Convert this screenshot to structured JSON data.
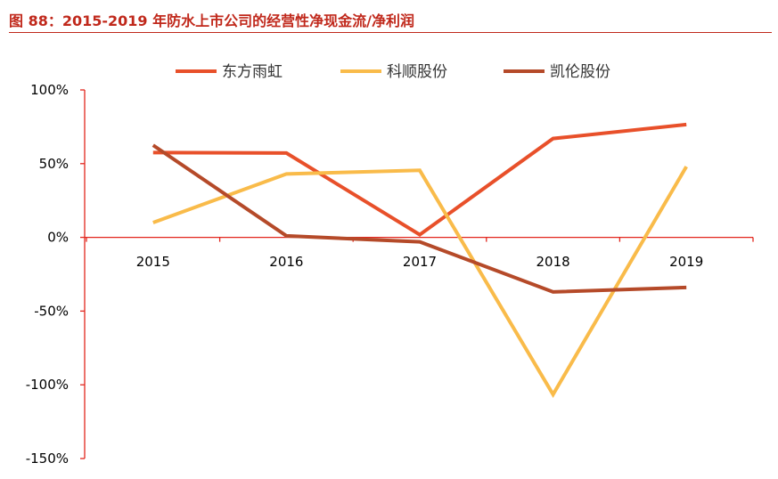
{
  "figure": {
    "title": "图 88：2015-2019 年防水上市公司的经营性净现金流/净利润"
  },
  "chart_data": {
    "type": "line",
    "title": "图 88：2015-2019 年防水上市公司的经营性净现金流/净利润",
    "xlabel": "",
    "ylabel": "",
    "categories": [
      "2015",
      "2016",
      "2017",
      "2018",
      "2019"
    ],
    "yticks": [
      "100%",
      "50%",
      "0%",
      "-50%",
      "-100%",
      "-150%"
    ],
    "ytick_values": [
      100,
      50,
      0,
      -50,
      -100,
      -150
    ],
    "ylim": [
      -150,
      100
    ],
    "unit": "%",
    "grid": false,
    "legend_position": "top",
    "series": [
      {
        "name": "东方雨虹",
        "color": "#e8502a",
        "values": [
          57.5,
          57.2,
          1.8,
          67.0,
          76.5
        ]
      },
      {
        "name": "科顺股份",
        "color": "#f9bb4a",
        "values": [
          10.0,
          43.0,
          45.5,
          -106.5,
          48.0
        ]
      },
      {
        "name": "凯伦股份",
        "color": "#b54a29",
        "values": [
          62.5,
          1.0,
          -3.0,
          -37.0,
          -34.0
        ]
      }
    ]
  }
}
